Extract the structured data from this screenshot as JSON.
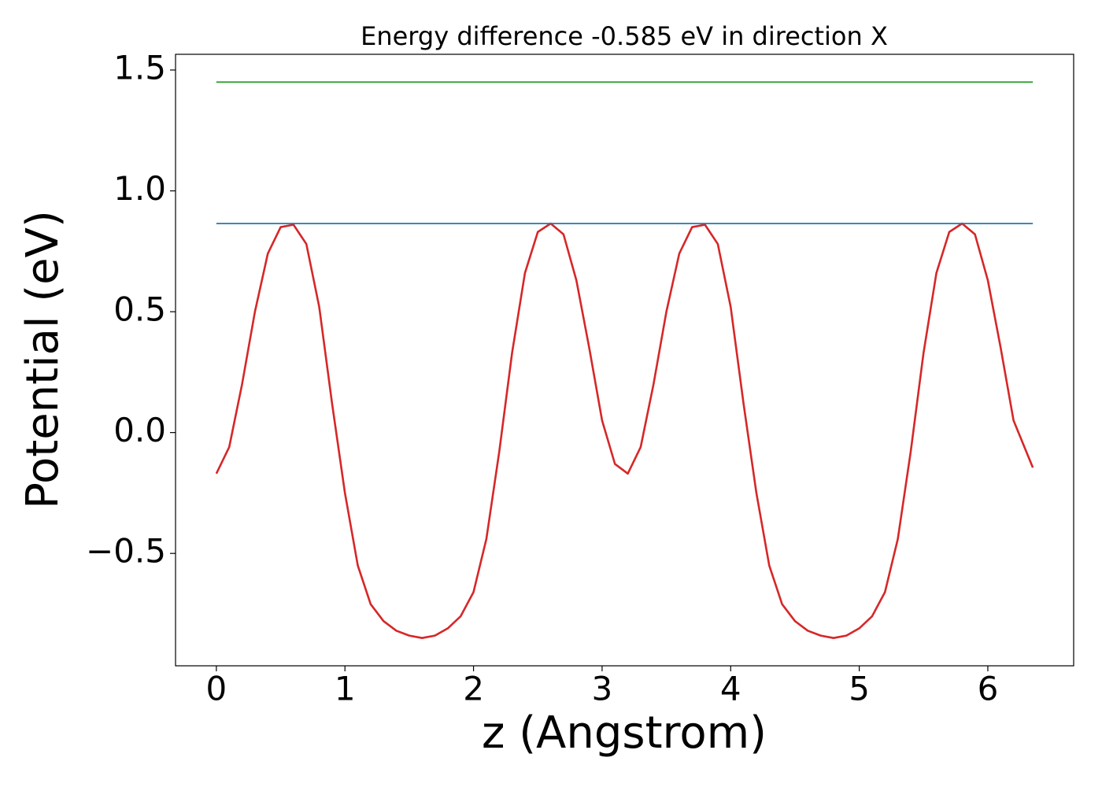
{
  "chart_data": {
    "type": "line",
    "title": "Energy difference -0.585 eV in direction X",
    "xlabel": "z (Angstrom)",
    "ylabel": "Potential (eV)",
    "xlim": [
      -0.3175,
      6.6675
    ],
    "ylim": [
      -0.965,
      1.565
    ],
    "xticks": [
      0,
      1,
      2,
      3,
      4,
      5,
      6
    ],
    "yticks": [
      {
        "value": -0.5,
        "label": "−0.5"
      },
      {
        "value": 0,
        "label": "0.0"
      },
      0.5,
      {
        "value": 1,
        "label": "1.0"
      },
      1.5
    ],
    "grid": false,
    "series": [
      {
        "color": "#d62728",
        "x": [
          0,
          0.1,
          0.2,
          0.3,
          0.4,
          0.5,
          0.6,
          0.7,
          0.8,
          0.9,
          1.0,
          1.1,
          1.2,
          1.3,
          1.4,
          1.5,
          1.6,
          1.7,
          1.8,
          1.9,
          2.0,
          2.1,
          2.2,
          2.3,
          2.4,
          2.5,
          2.6,
          2.7,
          2.8,
          2.9,
          3.0,
          3.1,
          3.2,
          3.3,
          3.4,
          3.5,
          3.6,
          3.7,
          3.8,
          3.9,
          4.0,
          4.1,
          4.2,
          4.3,
          4.4,
          4.5,
          4.6,
          4.7,
          4.8,
          4.9,
          5.0,
          5.1,
          5.2,
          5.3,
          5.4,
          5.5,
          5.6,
          5.7,
          5.8,
          5.9,
          6.0,
          6.1,
          6.2,
          6.3,
          6.35
        ],
        "values": [
          -0.17,
          -0.06,
          0.2,
          0.5,
          0.74,
          0.85,
          0.86,
          0.78,
          0.52,
          0.12,
          -0.25,
          -0.55,
          -0.71,
          -0.78,
          -0.82,
          -0.84,
          -0.85,
          -0.84,
          -0.81,
          -0.76,
          -0.66,
          -0.44,
          -0.08,
          0.33,
          0.66,
          0.83,
          0.865,
          0.82,
          0.63,
          0.35,
          0.05,
          -0.13,
          -0.17,
          -0.06,
          0.2,
          0.5,
          0.74,
          0.85,
          0.86,
          0.78,
          0.52,
          0.12,
          -0.25,
          -0.55,
          -0.71,
          -0.78,
          -0.82,
          -0.84,
          -0.85,
          -0.84,
          -0.81,
          -0.76,
          -0.66,
          -0.44,
          -0.08,
          0.33,
          0.66,
          0.83,
          0.865,
          0.82,
          0.63,
          0.35,
          0.05,
          -0.08,
          -0.145
        ]
      },
      {
        "color": "#1f77b4",
        "x": [
          0,
          6.35
        ],
        "values": [
          0.865,
          0.865
        ]
      },
      {
        "color": "#2ca02c",
        "x": [
          0,
          6.35
        ],
        "values": [
          1.45,
          1.45
        ]
      }
    ]
  }
}
